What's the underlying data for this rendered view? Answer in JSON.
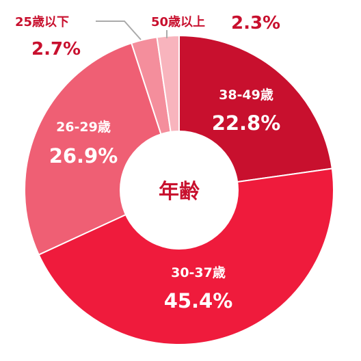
{
  "chart_data": {
    "type": "pie",
    "title": "年齢",
    "slices": [
      {
        "label": "38-49歳",
        "value": 22.8,
        "value_label": "22.8%",
        "color": "#c8102e"
      },
      {
        "label": "30-37歳",
        "value": 45.4,
        "value_label": "45.4%",
        "color": "#ef1b3c"
      },
      {
        "label": "26-29歳",
        "value": 26.9,
        "value_label": "26.9%",
        "color": "#ef5f74"
      },
      {
        "label": "25歳以下",
        "value": 2.7,
        "value_label": "2.7%",
        "color": "#f48e9c"
      },
      {
        "label": "50歳以上",
        "value": 2.3,
        "value_label": "2.3%",
        "color": "#f8b4bd"
      }
    ]
  }
}
